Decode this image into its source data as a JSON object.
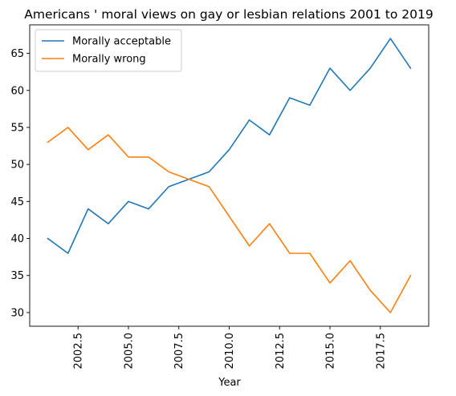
{
  "chart_data": {
    "type": "line",
    "title": "Americans ' moral views on gay or lesbian relations 2001 to 2019",
    "xlabel": "Year",
    "ylabel": "",
    "x": [
      2001,
      2002,
      2003,
      2004,
      2005,
      2006,
      2007,
      2008,
      2009,
      2010,
      2011,
      2012,
      2013,
      2014,
      2015,
      2016,
      2017,
      2018,
      2019
    ],
    "series": [
      {
        "name": "Morally acceptable",
        "color": "#1f77b4",
        "values": [
          40,
          38,
          44,
          42,
          45,
          44,
          47,
          48,
          49,
          52,
          56,
          54,
          59,
          58,
          63,
          60,
          63,
          67,
          63
        ]
      },
      {
        "name": "Morally wrong",
        "color": "#ff7f0e",
        "values": [
          53,
          55,
          52,
          54,
          51,
          51,
          49,
          48,
          47,
          43,
          39,
          42,
          38,
          38,
          34,
          37,
          33,
          30,
          35
        ]
      }
    ],
    "xlim": [
      2000.1,
      2019.9
    ],
    "ylim": [
      28.15,
      68.85
    ],
    "xticks": [
      2002.5,
      2005.0,
      2007.5,
      2010.0,
      2012.5,
      2015.0,
      2017.5
    ],
    "xtick_labels": [
      "2002.5",
      "2005.0",
      "2007.5",
      "2010.0",
      "2012.5",
      "2015.0",
      "2017.5"
    ],
    "yticks": [
      30,
      35,
      40,
      45,
      50,
      55,
      60,
      65
    ],
    "ytick_labels": [
      "30",
      "35",
      "40",
      "45",
      "50",
      "55",
      "60",
      "65"
    ],
    "xtick_rotation": "vertical",
    "grid": false,
    "legend": "upper-left"
  }
}
